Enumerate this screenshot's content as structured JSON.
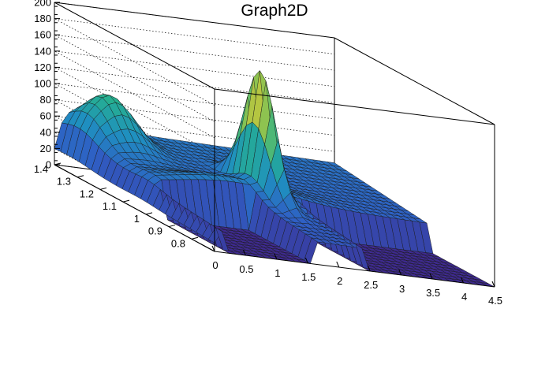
{
  "chart_data": {
    "type": "surface",
    "title": "Graph2D",
    "xlabel": "",
    "ylabel": "",
    "zlabel": "",
    "xlim": [
      0,
      4.5
    ],
    "ylim": [
      0.7,
      1.4
    ],
    "zlim": [
      0,
      200
    ],
    "grid": true,
    "x_ticks": [
      "0",
      "0.5",
      "1",
      "1.5",
      "2",
      "2.5",
      "3",
      "3.5",
      "4",
      "4.5"
    ],
    "y_ticks": [
      "0.8",
      "0.9",
      "1",
      "1.1",
      "1.2",
      "1.3",
      "1.4"
    ],
    "z_ticks": [
      "0",
      "20",
      "40",
      "60",
      "80",
      "100",
      "120",
      "140",
      "160",
      "180",
      "200"
    ],
    "colormap": [
      "#3e2a8f",
      "#2f5fc4",
      "#1f8fc0",
      "#26b08f",
      "#7dc257",
      "#d9c832",
      "#f9f23a"
    ],
    "features": [
      {
        "description": "ridge along high y",
        "x": 0.6,
        "y": 1.32,
        "peak_z": 100
      },
      {
        "description": "sharp peak",
        "x": 2.0,
        "y": 1.05,
        "peak_z": 180
      },
      {
        "description": "steep drop to zero",
        "x_range": [
          0.2,
          1.5
        ],
        "y": 0.9
      },
      {
        "description": "flat zero plateau",
        "x_range": [
          2.4,
          4.5
        ],
        "y_range": [
          0.7,
          1.0
        ],
        "z": 0
      }
    ]
  }
}
